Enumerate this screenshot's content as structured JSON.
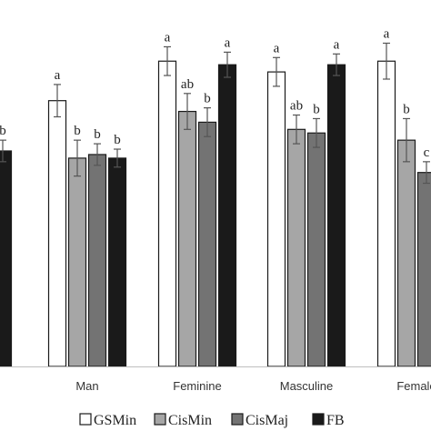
{
  "chart_data": {
    "type": "bar",
    "title": "",
    "xlabel": "",
    "ylabel": "",
    "ylim": [
      0,
      100
    ],
    "grid": false,
    "legend_position": "bottom",
    "categories": [
      "",
      "Man",
      "Feminine",
      "Masculine",
      "Female"
    ],
    "series": [
      {
        "name": "GSMin",
        "color": "#ffffff",
        "values": [
          null,
          74,
          85,
          82,
          85
        ],
        "errors": [
          null,
          4.5,
          4,
          4,
          5
        ],
        "letters": [
          null,
          "a",
          "a",
          "a",
          "a"
        ]
      },
      {
        "name": "CisMin",
        "color": "#a6a6a6",
        "values": [
          null,
          58,
          71,
          66,
          63
        ],
        "errors": [
          null,
          5,
          5,
          4,
          6
        ],
        "letters": [
          null,
          "b",
          "ab",
          "ab",
          "b"
        ]
      },
      {
        "name": "CisMaj",
        "color": "#737373",
        "values": [
          null,
          59,
          68,
          65,
          54
        ],
        "errors": [
          null,
          3,
          4,
          4,
          3
        ],
        "letters": [
          null,
          "b",
          "b",
          "b",
          "c"
        ]
      },
      {
        "name": "FB",
        "color": "#1a1a1a",
        "values": [
          60,
          58,
          84,
          84,
          null
        ],
        "errors": [
          3,
          2.5,
          3.5,
          3,
          null
        ],
        "letters": [
          "b",
          "b",
          "a",
          "a",
          null
        ]
      }
    ]
  }
}
